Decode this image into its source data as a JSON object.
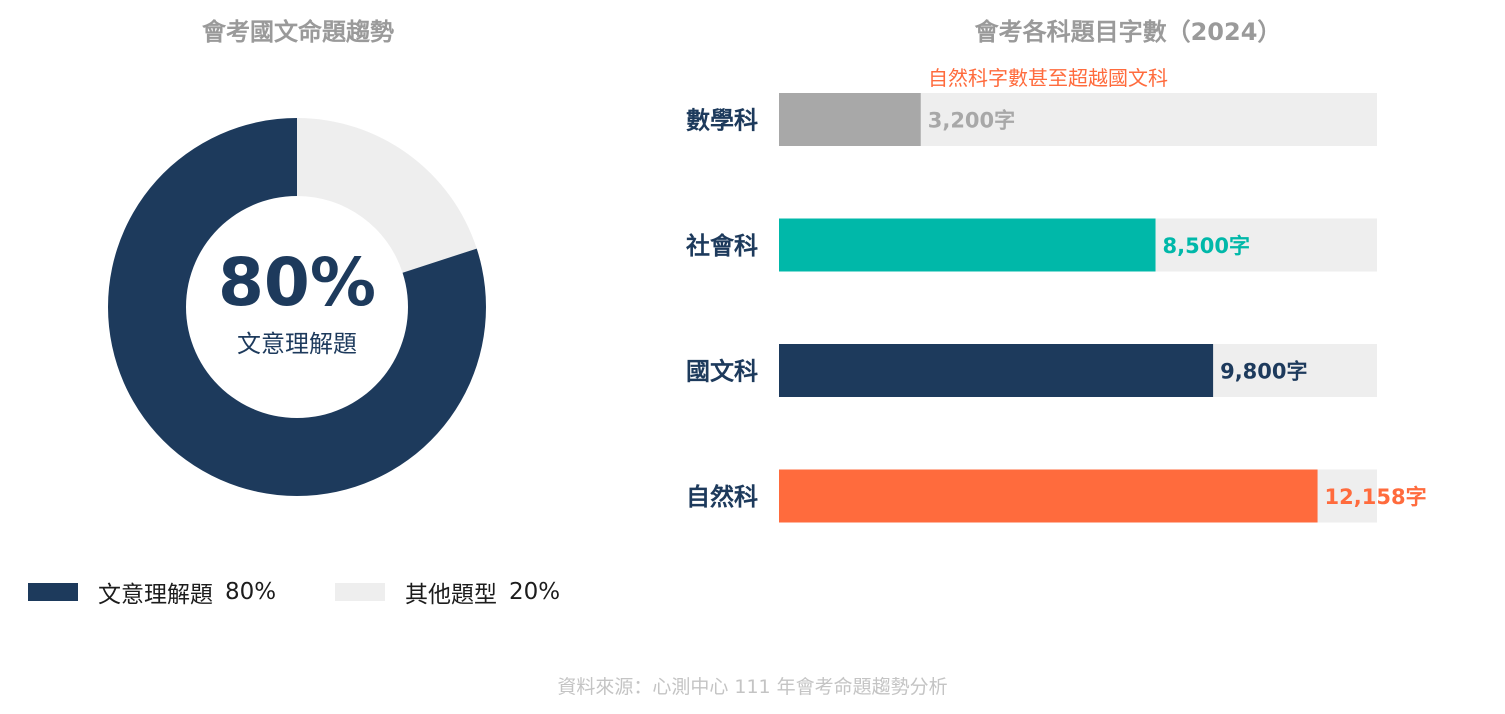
{
  "chart_data": [
    {
      "type": "pie",
      "title": "會考國文命題趨勢",
      "center_value": "80%",
      "center_label": "文意理解題",
      "slices": [
        {
          "label": "文意理解題",
          "value": 80,
          "value_label": "80%",
          "color": "#1d3a5c"
        },
        {
          "label": "其他題型",
          "value": 20,
          "value_label": "20%",
          "color": "#eeeeee"
        }
      ],
      "legend_position": "bottom"
    },
    {
      "type": "bar",
      "orientation": "horizontal",
      "title": "會考各科題目字數（2024）",
      "annotation": "自然科字數甚至超越國文科",
      "annotation_color": "#ff6b3d",
      "categories": [
        "數學科",
        "社會科",
        "國文科",
        "自然科"
      ],
      "values": [
        3200,
        8500,
        9800,
        12158
      ],
      "value_labels": [
        "3,200字",
        "8,500字",
        "9,800字",
        "12,158字"
      ],
      "bar_colors": [
        "#a8a8a8",
        "#00b8a9",
        "#1d3a5c",
        "#ff6b3d"
      ],
      "label_colors": [
        "#a8a8a8",
        "#00b8a9",
        "#1d3a5c",
        "#ff6b3d"
      ],
      "track_color": "#eeeeee",
      "xlim": [
        0,
        13500
      ]
    }
  ],
  "source": "資料來源：心測中心 111 年會考命題趨勢分析"
}
